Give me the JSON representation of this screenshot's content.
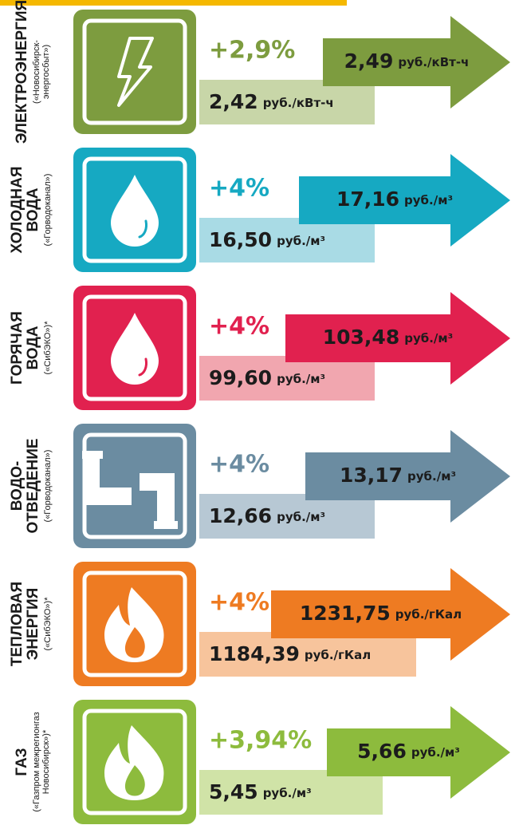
{
  "rows": [
    {
      "name": [
        "ЭЛЕКТРОЭНЕРГИЯ"
      ],
      "provider": [
        "(«Новосибирск-",
        "энергосбыт»)"
      ],
      "change": "+2,9%",
      "new_value": "2,49",
      "new_unit": "руб./кВт-ч",
      "old_value": "2,42",
      "old_unit": "руб./кВт-ч",
      "color": "#7d9c3f",
      "light": "#c8d6a8"
    },
    {
      "name": [
        "ХОЛОДНАЯ",
        "ВОДА"
      ],
      "provider": [
        "(«Горводоканал»)"
      ],
      "change": "+4%",
      "new_value": "17,16",
      "new_unit": "руб./м³",
      "old_value": "16,50",
      "old_unit": "руб./м³",
      "color": "#16a9c2",
      "light": "#a9dbe5"
    },
    {
      "name": [
        "ГОРЯЧАЯ",
        "ВОДА"
      ],
      "provider": [
        "(«СибЭКО»)*"
      ],
      "change": "+4%",
      "new_value": "103,48",
      "new_unit": "руб./м³",
      "old_value": "99,60",
      "old_unit": "руб./м³",
      "color": "#e1214f",
      "light": "#f1a6af"
    },
    {
      "name": [
        "ВОДО-",
        "ОТВЕДЕНИЕ"
      ],
      "provider": [
        "(«Горводоканал»)"
      ],
      "change": "+4%",
      "new_value": "13,17",
      "new_unit": "руб./м³",
      "old_value": "12,66",
      "old_unit": "руб./м³",
      "color": "#6b8ca1",
      "light": "#b7c8d4"
    },
    {
      "name": [
        "ТЕПЛОВАЯ",
        "ЭНЕРГИЯ"
      ],
      "provider": [
        "(«СибЭКО»)*"
      ],
      "change": "+4%",
      "new_value": "1231,75",
      "new_unit": "руб./гКал",
      "old_value": "1184,39",
      "old_unit": "руб./гКал",
      "color": "#ee7b22",
      "light": "#f7c49c"
    },
    {
      "name": [
        "ГАЗ"
      ],
      "provider": [
        "(«Газпром межрегионгаз",
        "Новосибирск»)*"
      ],
      "change": "+3,94%",
      "new_value": "5,66",
      "new_unit": "руб./м³",
      "old_value": "5,45",
      "old_unit": "руб./м³",
      "color": "#8dbb3d",
      "light": "#d0e3a7"
    }
  ]
}
